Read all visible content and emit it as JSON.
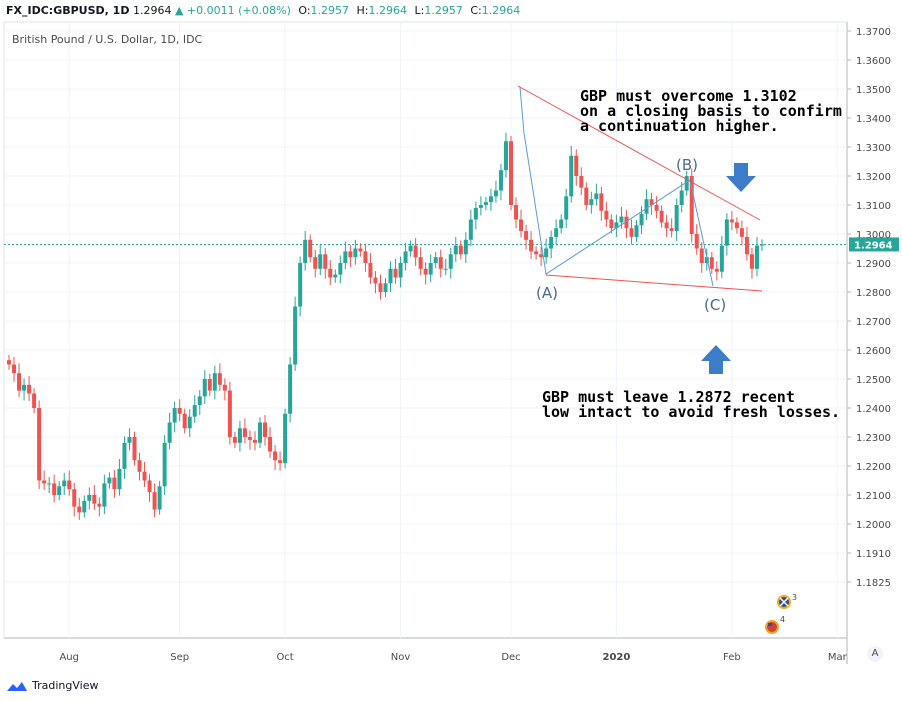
{
  "header": {
    "symbol": "FX_IDC:GBPUSD, 1D",
    "last": "1.2964",
    "change": "▲ +0.0011 (+0.08%)",
    "ohlc": [
      {
        "label": "O:",
        "value": "1.2957"
      },
      {
        "label": "H:",
        "value": "1.2964"
      },
      {
        "label": "L:",
        "value": "1.2957"
      },
      {
        "label": "C:",
        "value": "1.2964"
      }
    ]
  },
  "footer": {
    "brand": "TradingView"
  },
  "controls": {
    "auto_label": "A"
  },
  "colors": {
    "up": "#26a69a",
    "down": "#ef5350",
    "trend": "#ef5350",
    "wave": "#5b9bd5",
    "arrow": "#3d7cc9"
  },
  "chart_data": {
    "type": "candlestick",
    "title": "British Pound / U.S. Dollar, 1D, IDC",
    "ylim": [
      1.1825,
      1.37
    ],
    "y_ticks": [
      "1.3700",
      "1.3600",
      "1.3500",
      "1.3400",
      "1.3300",
      "1.3200",
      "1.3100",
      "1.3000",
      "1.2900",
      "1.2800",
      "1.2700",
      "1.2600",
      "1.2500",
      "1.2400",
      "1.2300",
      "1.2200",
      "1.2100",
      "1.2000",
      "1.1910",
      "1.1825"
    ],
    "x_ticks": [
      "Aug",
      "Sep",
      "Oct",
      "Nov",
      "Dec",
      "2020",
      "Feb",
      "Mar"
    ],
    "x_tick_index": [
      12,
      34,
      55,
      78,
      100,
      121,
      144,
      165
    ],
    "last_price": 1.2964,
    "last_price_label": "1.2964",
    "closes": [
      1.255,
      1.252,
      1.246,
      1.248,
      1.245,
      1.24,
      1.215,
      1.214,
      1.214,
      1.21,
      1.213,
      1.215,
      1.212,
      1.206,
      1.204,
      1.208,
      1.21,
      1.207,
      1.206,
      1.214,
      1.216,
      1.212,
      1.219,
      1.228,
      1.23,
      1.222,
      1.218,
      1.215,
      1.211,
      1.205,
      1.213,
      1.228,
      1.235,
      1.24,
      1.238,
      1.233,
      1.237,
      1.241,
      1.244,
      1.25,
      1.246,
      1.252,
      1.248,
      1.246,
      1.23,
      1.228,
      1.233,
      1.23,
      1.229,
      1.228,
      1.235,
      1.23,
      1.225,
      1.222,
      1.221,
      1.238,
      1.255,
      1.275,
      1.29,
      1.298,
      1.292,
      1.288,
      1.293,
      1.288,
      1.285,
      1.286,
      1.29,
      1.294,
      1.292,
      1.295,
      1.294,
      1.29,
      1.285,
      1.283,
      1.28,
      1.283,
      1.288,
      1.285,
      1.29,
      1.294,
      1.296,
      1.292,
      1.288,
      1.286,
      1.29,
      1.292,
      1.288,
      1.288,
      1.293,
      1.296,
      1.293,
      1.298,
      1.305,
      1.309,
      1.31,
      1.311,
      1.313,
      1.315,
      1.322,
      1.332,
      1.31,
      1.305,
      1.301,
      1.298,
      1.294,
      1.293,
      1.292,
      1.295,
      1.299,
      1.302,
      1.305,
      1.313,
      1.327,
      1.32,
      1.316,
      1.31,
      1.312,
      1.314,
      1.308,
      1.305,
      1.302,
      1.304,
      1.306,
      1.302,
      1.299,
      1.303,
      1.307,
      1.312,
      1.31,
      1.308,
      1.304,
      1.302,
      1.301,
      1.31,
      1.315,
      1.32,
      1.3,
      1.295,
      1.29,
      1.292,
      1.288,
      1.287,
      1.296,
      1.305,
      1.304,
      1.302,
      1.299,
      1.293,
      1.288,
      1.296,
      1.2964
    ]
  }
}
